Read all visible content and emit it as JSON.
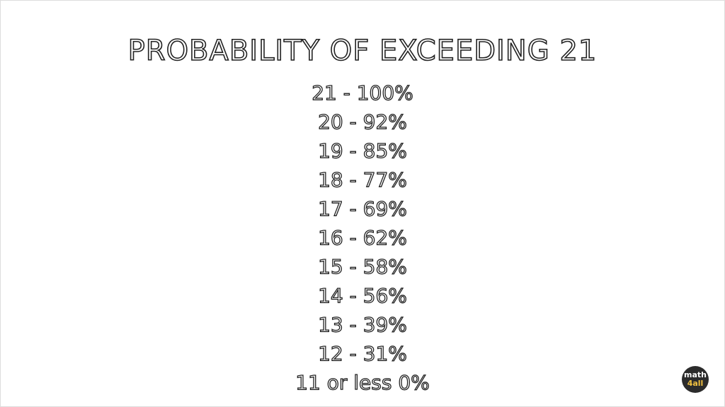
{
  "title": "PROBABILITY OF EXCEEDING 21",
  "lines": [
    "21 - 100%",
    "20 - 92%",
    "19 - 85%",
    "18 - 77%",
    "17 - 69%",
    "16 - 62%",
    "15 - 58%",
    "14 - 56%",
    "13 - 39%",
    "12 - 31%",
    "11 or less 0%"
  ],
  "logo": {
    "top": "math",
    "bottom": "4all"
  }
}
